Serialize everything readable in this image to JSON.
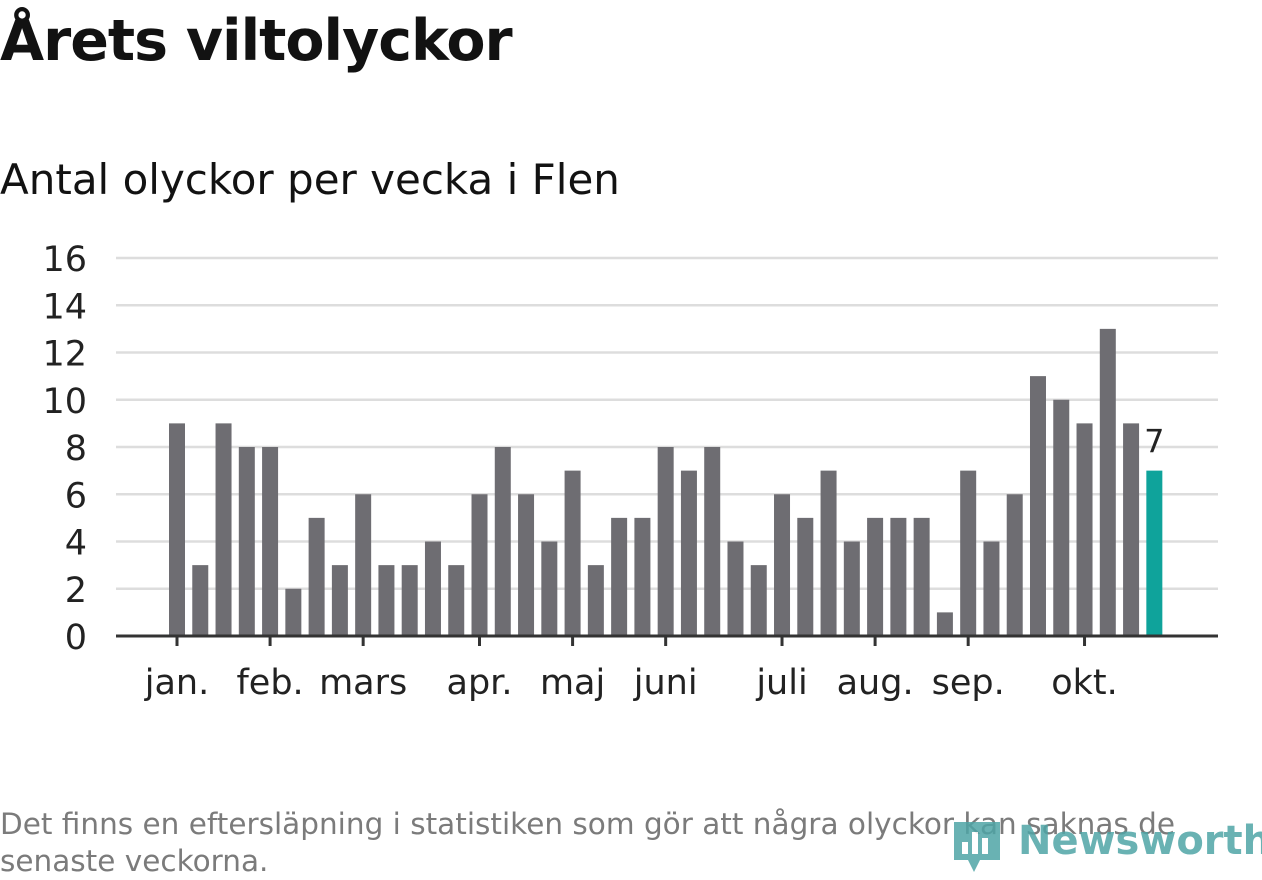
{
  "title": "Årets viltolyckor",
  "subtitle": "Antal olyckor per vecka i Flen",
  "footnote": "Det finns en eftersläpning i statistiken som gör att några olyckor kan saknas de senaste veckorna.",
  "logo": {
    "text": "Newsworthy",
    "icon": "newsworthy-chart-icon"
  },
  "colors": {
    "bar": "#6e6d72",
    "highlight": "#0fa39b",
    "grid": "#dddddd",
    "axis": "#333333",
    "text": "#121212",
    "footnote": "#7b7b7b"
  },
  "chart_data": {
    "type": "bar",
    "values": [
      9,
      3,
      9,
      8,
      8,
      2,
      5,
      3,
      6,
      3,
      3,
      4,
      3,
      6,
      8,
      6,
      4,
      7,
      3,
      5,
      5,
      8,
      7,
      8,
      4,
      3,
      6,
      5,
      7,
      4,
      5,
      5,
      5,
      1,
      7,
      4,
      6,
      11,
      10,
      9,
      13,
      9,
      7
    ],
    "highlight_last": true,
    "last_value_label": "7",
    "ylim": [
      0,
      16
    ],
    "yticks": [
      0,
      2,
      4,
      6,
      8,
      10,
      12,
      14,
      16
    ],
    "grid": true,
    "month_labels": [
      {
        "label": "jan.",
        "bar_index": 0
      },
      {
        "label": "feb.",
        "bar_index": 4
      },
      {
        "label": "mars",
        "bar_index": 8
      },
      {
        "label": "apr.",
        "bar_index": 13
      },
      {
        "label": "maj",
        "bar_index": 17
      },
      {
        "label": "juni",
        "bar_index": 21
      },
      {
        "label": "juli",
        "bar_index": 26
      },
      {
        "label": "aug.",
        "bar_index": 30
      },
      {
        "label": "sep.",
        "bar_index": 34
      },
      {
        "label": "okt.",
        "bar_index": 39
      }
    ]
  }
}
